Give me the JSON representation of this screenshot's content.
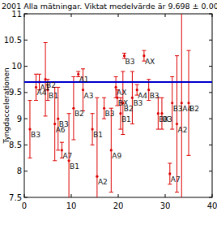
{
  "chart_data": {
    "type": "scatter",
    "title": "2001 Alla mätningar. Viktat medelvärde är 9.698 ± 0.008",
    "y_label": "Tyngdaccelerationen",
    "xlim": [
      0,
      40
    ],
    "xticks": [
      0,
      10,
      20,
      30,
      40
    ],
    "ylim": [
      7.5,
      11
    ],
    "yticks": [
      7.5,
      8,
      8.5,
      9,
      9.5,
      10,
      10.5,
      11
    ],
    "reference_line": 9.698,
    "reference_color": "#0000cc",
    "series": [
      {
        "color": "#dd0000",
        "marker": "dot",
        "x": [
          1.2,
          2.5,
          3.2,
          4.5,
          5.0,
          6.5,
          7.2,
          8.0,
          9.5,
          10.5,
          11.5,
          12.5,
          14.5,
          15.5,
          17.0,
          18.5,
          19.5,
          19.8,
          20.5,
          21.0,
          21.3,
          23.0,
          24.0,
          25.5,
          26.5,
          28.5,
          29.3,
          31.0,
          31.5,
          32.5,
          33.5,
          35.0
        ],
        "values": [
          8.8,
          9.6,
          9.7,
          9.75,
          9.55,
          8.9,
          9.0,
          8.4,
          8.2,
          9.2,
          9.85,
          9.55,
          8.8,
          7.9,
          9.2,
          8.4,
          9.6,
          9.4,
          9.1,
          9.3,
          10.2,
          9.4,
          9.55,
          10.2,
          9.55,
          9.1,
          9.1,
          7.95,
          9.3,
          8.9,
          9.3,
          9.3
        ],
        "errors": [
          0.55,
          0.25,
          0.15,
          0.7,
          0.2,
          0.7,
          0.6,
          0.15,
          0.9,
          0.6,
          0.05,
          0.4,
          0.3,
          1.5,
          0.2,
          0.8,
          0.2,
          0.15,
          0.3,
          0.6,
          0.05,
          0.5,
          0.1,
          0.1,
          0.2,
          0.3,
          0.3,
          0.2,
          0.5,
          1.3,
          2.5,
          1.0
        ],
        "labels": [
          "B3",
          "A4",
          "A1",
          "B2",
          "B1",
          "A6",
          "B3",
          "A7",
          "B1",
          "B2",
          "A1",
          "A3",
          "B1",
          "A2",
          "B3",
          "A9",
          "AX",
          "BX",
          "B1",
          "B2",
          "B3",
          "B3",
          "A4",
          "AX",
          "B3",
          "BX",
          "B3",
          "A7",
          "B3",
          "A2",
          "A4",
          "B2"
        ]
      }
    ]
  }
}
